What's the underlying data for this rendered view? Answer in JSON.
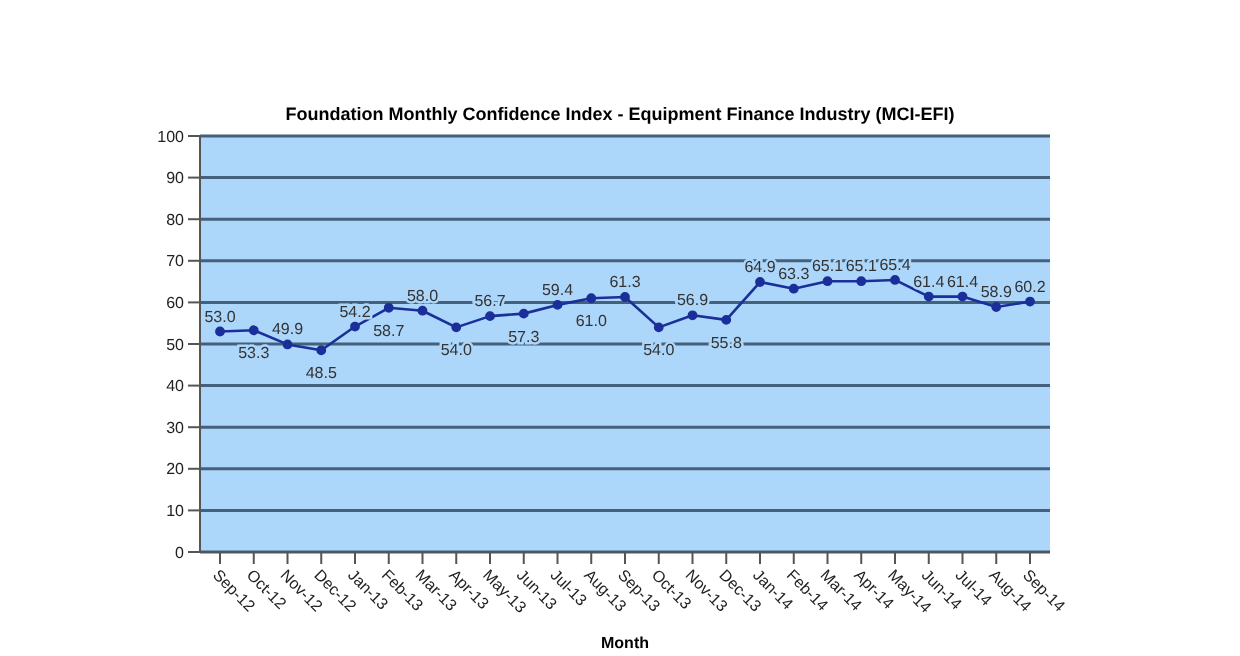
{
  "chart_data": {
    "type": "line",
    "title": "Foundation Monthly Confidence Index - Equipment Finance Industry (MCI-EFI)",
    "xlabel": "Month",
    "categories": [
      "Sep-12",
      "Oct-12",
      "Nov-12",
      "Dec-12",
      "Jan-13",
      "Feb-13",
      "Mar-13",
      "Apr-13",
      "May-13",
      "Jun-13",
      "Jul-13",
      "Aug-13",
      "Sep-13",
      "Oct-13",
      "Nov-13",
      "Dec-13",
      "Jan-14",
      "Feb-14",
      "Mar-14",
      "Apr-14",
      "May-14",
      "Jun-14",
      "Jul-14",
      "Aug-14",
      "Sep-14"
    ],
    "values": [
      53.0,
      53.3,
      49.9,
      48.5,
      54.2,
      58.7,
      58.0,
      54.0,
      56.7,
      57.3,
      59.4,
      61.0,
      61.3,
      54.0,
      56.9,
      55.8,
      64.9,
      63.3,
      65.1,
      65.1,
      65.4,
      61.4,
      61.4,
      58.9,
      60.2
    ],
    "value_labels": [
      "53.0",
      "53.3",
      "49.9",
      "48.5",
      "54.2",
      "58.7",
      "58.0",
      "54.0",
      "56.7",
      "57.3",
      "59.4",
      "61.0",
      "61.3",
      "54.0",
      "56.9",
      "55.8",
      "64.9",
      "63.3",
      "65.1",
      "65.1",
      "65.4",
      "61.4",
      "61.4",
      "58.9",
      "60.2"
    ],
    "color": "#1a2f9a",
    "ylim": [
      0,
      100
    ],
    "yticks": [
      0,
      10,
      20,
      30,
      40,
      50,
      60,
      70,
      80,
      90,
      100
    ],
    "grid": "y",
    "marker": "circle",
    "line_style": "solid"
  }
}
